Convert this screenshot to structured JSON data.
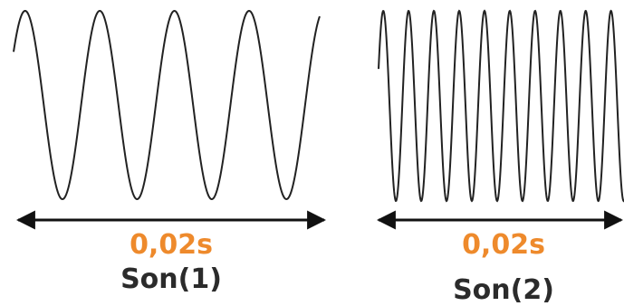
{
  "sounds": [
    {
      "name": "Son(1)",
      "duration": "0,02s",
      "periods_shown": 4
    },
    {
      "name": "Son(2)",
      "duration": "0,02s",
      "periods_shown": 10
    }
  ],
  "colors": {
    "wave": "#222222",
    "arrow": "#111111",
    "duration_text": "#ee8a2c",
    "name_text": "#2b2b2b",
    "background": "#ffffff"
  }
}
